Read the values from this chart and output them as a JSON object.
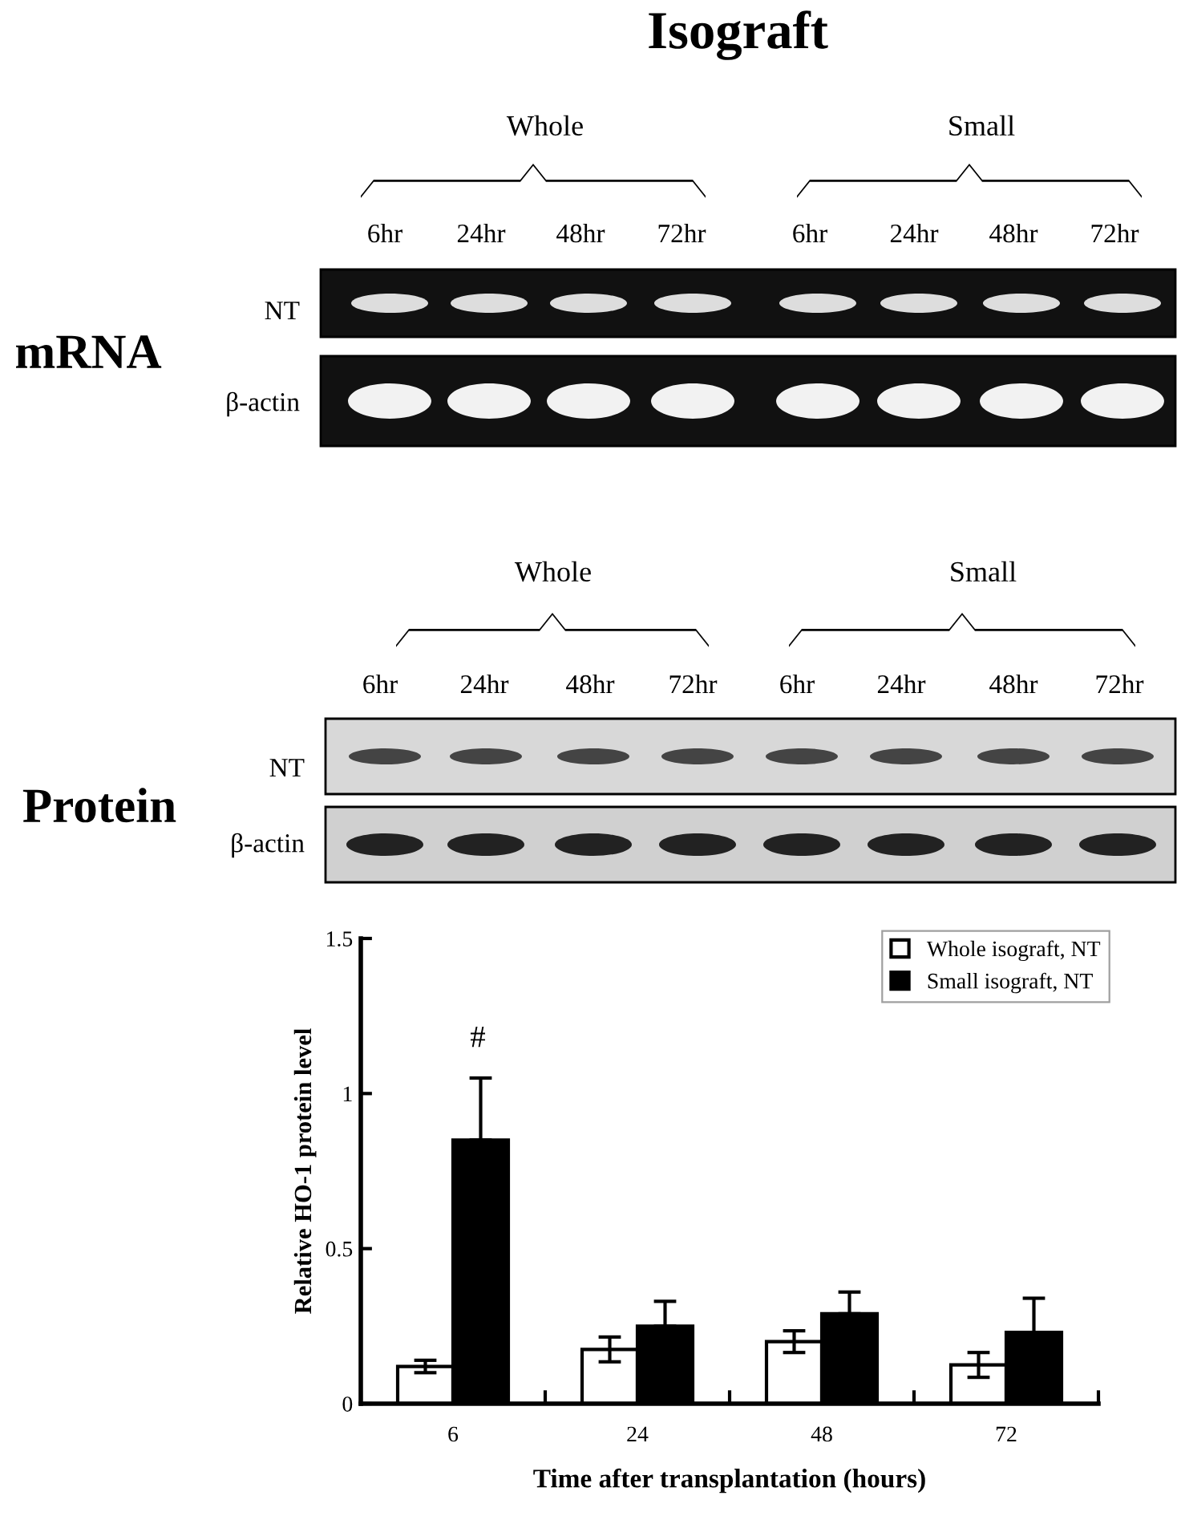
{
  "chart_data": {
    "type": "bar",
    "title": "Isograft",
    "categories": [
      "6",
      "24",
      "48",
      "72"
    ],
    "series": [
      {
        "name": "Whole isograft, NT",
        "color": "#ffffff",
        "values": [
          0.12,
          0.175,
          0.2,
          0.125
        ],
        "errors": [
          0.02,
          0.04,
          0.035,
          0.04
        ]
      },
      {
        "name": "Small isograft, NT",
        "color": "#000000",
        "values": [
          0.85,
          0.25,
          0.29,
          0.23
        ],
        "errors": [
          [
            0.85,
            1.05
          ],
          [
            0.25,
            0.33
          ],
          [
            0.29,
            0.36
          ],
          [
            0.23,
            0.34
          ]
        ]
      }
    ],
    "xlabel": "Time after transplantation (hours)",
    "ylabel": "Relative HO-1 protein level",
    "ylim": [
      0,
      1.5
    ],
    "yticks": [
      0,
      0.5,
      1,
      1.5
    ],
    "grid": false,
    "legend": "top right",
    "annotations": [
      "#",
      "mRNA",
      "Whole",
      "Small",
      "6hr",
      "24hr",
      "48hr",
      "72hr",
      "6hr",
      "24hr",
      "48hr",
      "72hr",
      "NT",
      "β-actin",
      "Protein",
      "Whole",
      "Small",
      "6hr",
      "24hr",
      "48hr",
      "72hr",
      "6hr",
      "24hr",
      "48hr",
      "72hr",
      "NT",
      "β-actin"
    ]
  }
}
